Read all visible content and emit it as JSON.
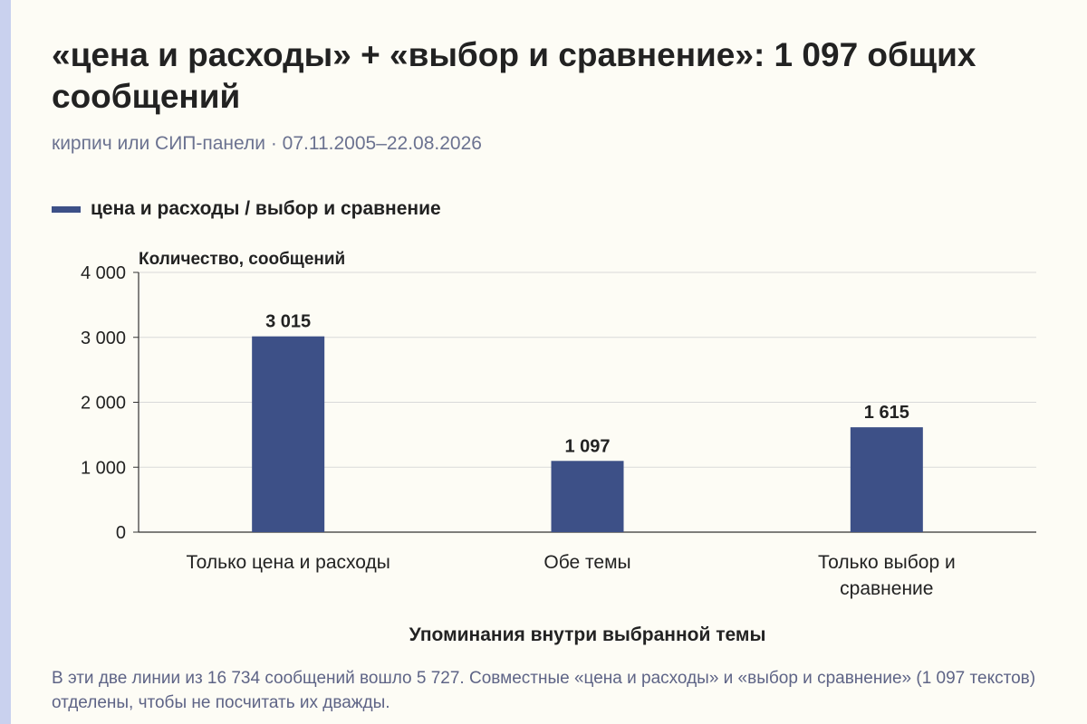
{
  "title": "«цена и расходы» + «выбор и сравнение»: 1 097 общих сообщений",
  "subtitle": "кирпич или СИП-панели · 07.11.2005–22.08.2026",
  "caption": "В эти две линии из 16 734 сообщений вошло 5 727. Совместные «цена и расходы» и «выбор и сравнение» (1 097 текстов) отделены, чтобы не посчитать их дважды.",
  "colors": {
    "bar": "#3d5087",
    "background": "#fdfcf5",
    "grid": "#d9d9d9",
    "axis": "#333333",
    "stripe": "#c9d1ee"
  },
  "chart_data": {
    "type": "bar",
    "categories": [
      [
        "Только цена и расходы"
      ],
      [
        "Обе темы"
      ],
      [
        "Только выбор и",
        "сравнение"
      ]
    ],
    "series": [
      {
        "name": "цена и расходы / выбор и сравнение",
        "values": [
          3015,
          1097,
          1615
        ]
      }
    ],
    "value_labels": [
      "3 015",
      "1 097",
      "1 615"
    ],
    "ylabel": "Количество, сообщений",
    "xlabel": "Упоминания внутри выбранной темы",
    "ylim": [
      0,
      4000
    ],
    "yticks": [
      0,
      1000,
      2000,
      3000,
      4000
    ],
    "ytick_labels": [
      "0",
      "1 000",
      "2 000",
      "3 000",
      "4 000"
    ],
    "grid": true,
    "legend_position": "top-left"
  }
}
